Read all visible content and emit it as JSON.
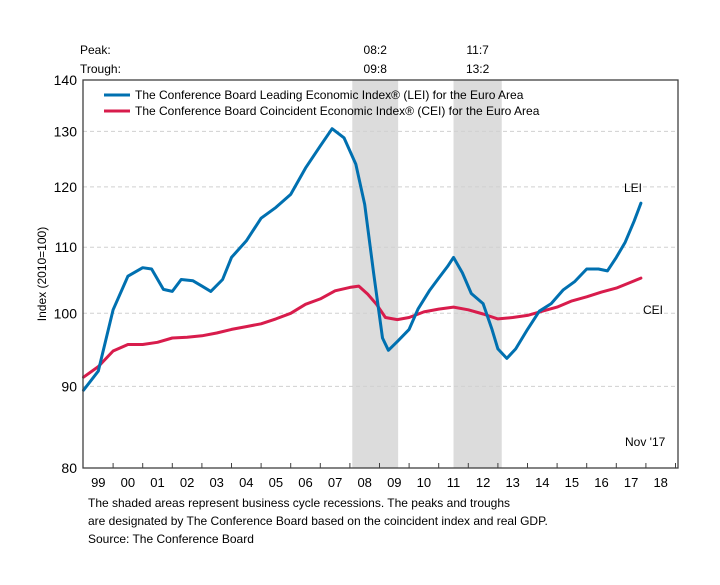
{
  "chart_data": {
    "type": "line",
    "title": "",
    "ylabel": "Index (2010=100)",
    "xlabel": "",
    "yscale": "log",
    "ylim": [
      80,
      140
    ],
    "xlim": [
      1999,
      2019
    ],
    "grid": true,
    "yticks": [
      80,
      90,
      100,
      110,
      120,
      130,
      140
    ],
    "xtick_labels": [
      "99",
      "00",
      "01",
      "02",
      "03",
      "04",
      "05",
      "06",
      "07",
      "08",
      "09",
      "10",
      "11",
      "12",
      "13",
      "14",
      "15",
      "16",
      "17",
      "18"
    ],
    "legend_position": "top-left",
    "peak_label": "Peak:",
    "trough_label": "Trough:",
    "recessions": [
      {
        "peak": "08:2",
        "trough": "09:8",
        "start": 2008.08,
        "end": 2009.63
      },
      {
        "peak": "11:7",
        "trough": "13:2",
        "start": 2011.5,
        "end": 2013.13
      }
    ],
    "series": [
      {
        "name": "The Conference Board Leading Economic Index® (LEI) for the Euro Area",
        "short": "LEI",
        "color": "#0070b0",
        "x": [
          1999.0,
          1999.5,
          2000.0,
          2000.5,
          2001.0,
          2001.3,
          2001.7,
          2002.0,
          2002.3,
          2002.7,
          2003.0,
          2003.3,
          2003.7,
          2004.0,
          2004.5,
          2005.0,
          2005.5,
          2006.0,
          2006.5,
          2007.0,
          2007.4,
          2007.8,
          2008.2,
          2008.5,
          2008.8,
          2009.1,
          2009.3,
          2009.6,
          2010.0,
          2010.3,
          2010.7,
          2011.0,
          2011.3,
          2011.5,
          2011.8,
          2012.1,
          2012.5,
          2012.8,
          2013.0,
          2013.3,
          2013.6,
          2014.0,
          2014.4,
          2014.8,
          2015.2,
          2015.6,
          2016.0,
          2016.4,
          2016.7,
          2017.0,
          2017.3,
          2017.6,
          2017.83
        ],
        "values": [
          89.5,
          92.0,
          100.5,
          105.5,
          106.8,
          106.6,
          103.5,
          103.2,
          105.0,
          104.8,
          104.0,
          103.2,
          105.0,
          108.4,
          111.0,
          114.7,
          116.5,
          118.7,
          123.3,
          127.3,
          130.5,
          128.8,
          124.0,
          117.0,
          106.0,
          96.5,
          94.8,
          96.0,
          97.7,
          100.6,
          103.4,
          105.2,
          107.0,
          108.4,
          106.0,
          102.9,
          101.4,
          97.7,
          95.0,
          93.7,
          95.0,
          97.7,
          100.3,
          101.4,
          103.4,
          104.7,
          106.6,
          106.6,
          106.3,
          108.4,
          110.8,
          114.2,
          117.2
        ]
      },
      {
        "name": "The Conference Board Coincident Economic Index® (CEI) for the Euro Area",
        "short": "CEI",
        "color": "#d81c4c",
        "x": [
          1999.0,
          1999.5,
          2000.0,
          2000.5,
          2001.0,
          2001.5,
          2002.0,
          2002.5,
          2003.0,
          2003.5,
          2004.0,
          2004.5,
          2005.0,
          2005.5,
          2006.0,
          2006.5,
          2007.0,
          2007.5,
          2008.0,
          2008.3,
          2008.6,
          2008.9,
          2009.2,
          2009.6,
          2010.0,
          2010.5,
          2011.0,
          2011.5,
          2012.0,
          2012.5,
          2013.0,
          2013.5,
          2014.0,
          2014.5,
          2015.0,
          2015.5,
          2016.0,
          2016.5,
          2017.0,
          2017.5,
          2017.83
        ],
        "values": [
          91.2,
          92.6,
          94.7,
          95.6,
          95.6,
          95.9,
          96.5,
          96.6,
          96.8,
          97.2,
          97.7,
          98.1,
          98.5,
          99.2,
          100.0,
          101.3,
          102.1,
          103.3,
          103.8,
          104.0,
          102.8,
          101.3,
          99.4,
          99.1,
          99.4,
          100.2,
          100.6,
          100.9,
          100.5,
          99.9,
          99.2,
          99.4,
          99.7,
          100.3,
          100.9,
          101.8,
          102.4,
          103.1,
          103.7,
          104.6,
          105.2
        ]
      }
    ],
    "annotations": {
      "lei_label": "LEI",
      "cei_label": "CEI",
      "date_label": "Nov '17"
    }
  },
  "footnotes": {
    "line1": "The shaded areas represent business cycle recessions. The peaks and troughs",
    "line2": "are designated by The Conference Board based on the coincident index and real GDP.",
    "line3": "Source: The Conference Board"
  }
}
